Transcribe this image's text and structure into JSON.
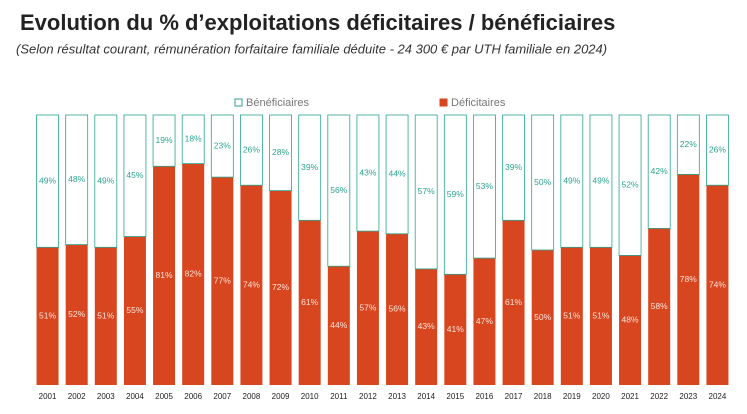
{
  "chart_data": {
    "type": "stacked-bar",
    "title": "Evolution du % d’exploitations déficitaires / bénéficiaires",
    "subtitle": "(Selon résultat courant, rémunération forfaitaire familiale déduite - 24 300 € par UTH familiale en 2024)",
    "categories": [
      "2001",
      "2002",
      "2003",
      "2004",
      "2005",
      "2006",
      "2007",
      "2008",
      "2009",
      "2010",
      "2011",
      "2012",
      "2013",
      "2014",
      "2015",
      "2016",
      "2017",
      "2018",
      "2019",
      "2020",
      "2021",
      "2022",
      "2023",
      "2024"
    ],
    "series": [
      {
        "name": "Déficitaires",
        "color": "#d8461f",
        "values": [
          51,
          52,
          51,
          55,
          81,
          82,
          77,
          74,
          72,
          61,
          44,
          57,
          56,
          43,
          41,
          47,
          61,
          50,
          51,
          51,
          48,
          58,
          78,
          74
        ],
        "value_labels": [
          "51%",
          "52%",
          "51%",
          "55%",
          "81%",
          "82%",
          "77%",
          "74%",
          "72%",
          "61%",
          "44%",
          "57%",
          "56%",
          "43%",
          "41%",
          "47%",
          "61%",
          "50%",
          "51%",
          "51%",
          "48%",
          "58%",
          "78%",
          "74%"
        ]
      },
      {
        "name": "Bénéficiaires",
        "color": "#2aa58f",
        "values": [
          49,
          48,
          49,
          45,
          19,
          18,
          23,
          26,
          28,
          39,
          56,
          43,
          44,
          57,
          59,
          53,
          39,
          50,
          49,
          49,
          52,
          42,
          22,
          26
        ],
        "value_labels": [
          "49%",
          "48%",
          "49%",
          "45%",
          "19%",
          "18%",
          "23%",
          "26%",
          "28%",
          "39%",
          "56%",
          "43%",
          "44%",
          "57%",
          "59%",
          "53%",
          "39%",
          "50%",
          "49%",
          "49%",
          "52%",
          "42%",
          "22%",
          "26%"
        ]
      }
    ],
    "ylim": [
      0,
      100
    ]
  }
}
